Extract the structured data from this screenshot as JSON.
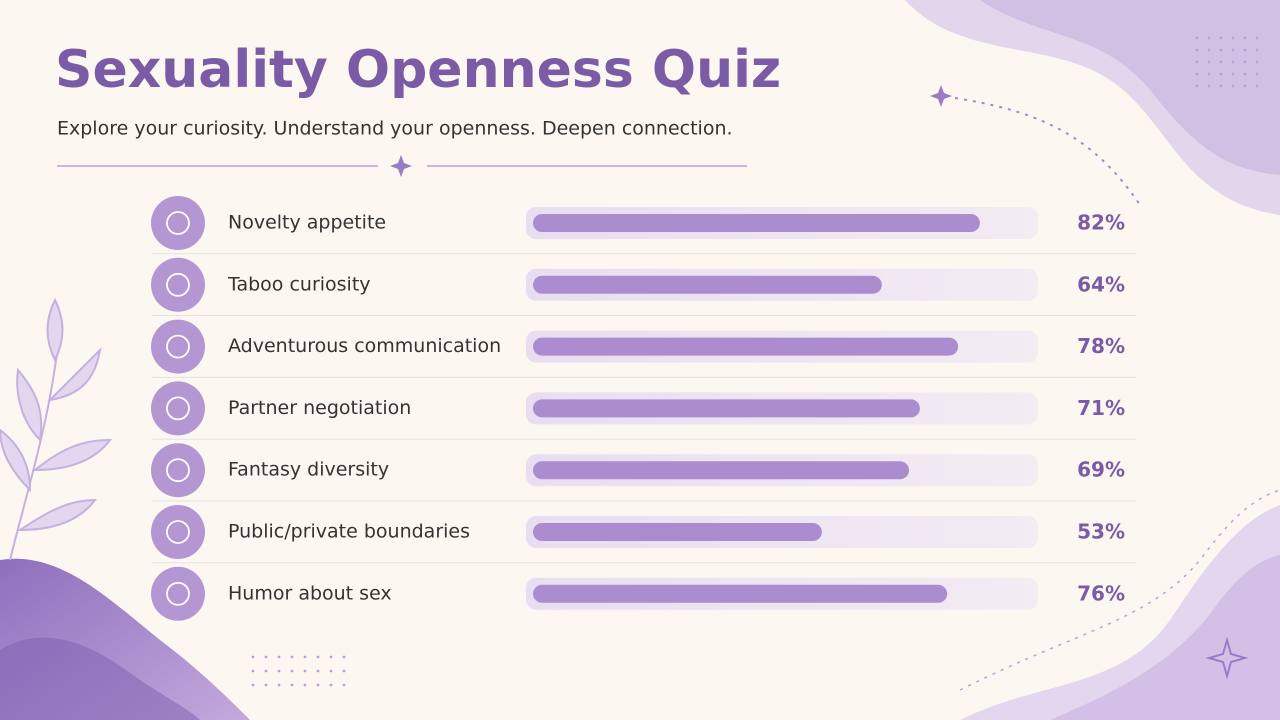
{
  "chart_data": {
    "type": "bar",
    "orientation": "horizontal",
    "title": "Sexuality Openness Quiz",
    "subtitle": "Explore your curiosity. Understand your openness. Deepen connection.",
    "categories": [
      "Novelty appetite",
      "Taboo curiosity",
      "Adventurous communication",
      "Partner negotiation",
      "Fantasy diversity",
      "Public/private boundaries",
      "Humor about sex"
    ],
    "values": [
      82,
      64,
      78,
      71,
      69,
      53,
      76
    ],
    "value_labels": [
      "82%",
      "64%",
      "78%",
      "71%",
      "69%",
      "53%",
      "76%"
    ],
    "color": "#ab8dcf",
    "xlim": [
      0,
      100
    ]
  }
}
